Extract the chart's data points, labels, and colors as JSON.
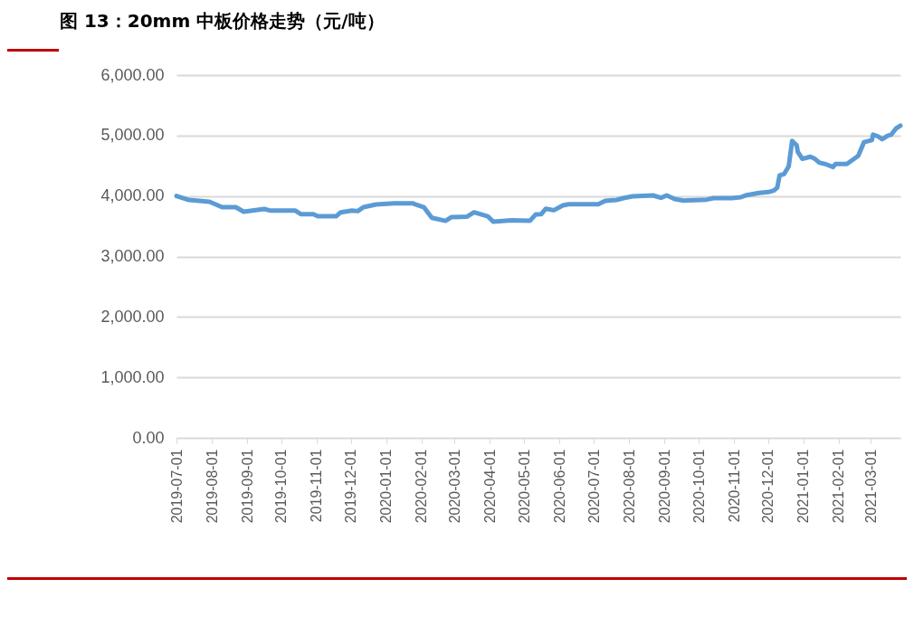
{
  "chart_data": {
    "type": "line",
    "title": "图 13：20mm 中板价格走势（元/吨）",
    "x": [
      "2019-07-01",
      "2019-07-12",
      "2019-07-30",
      "2019-08-10",
      "2019-08-22",
      "2019-08-29",
      "2019-09-16",
      "2019-09-21",
      "2019-10-13",
      "2019-10-18",
      "2019-10-29",
      "2019-11-02",
      "2019-11-18",
      "2019-11-22",
      "2019-12-02",
      "2019-12-07",
      "2019-12-12",
      "2019-12-23",
      "2020-01-08",
      "2020-01-24",
      "2020-01-26",
      "2020-02-03",
      "2020-02-10",
      "2020-02-22",
      "2020-02-27",
      "2020-03-12",
      "2020-03-18",
      "2020-03-30",
      "2020-04-04",
      "2020-04-20",
      "2020-05-06",
      "2020-05-11",
      "2020-05-16",
      "2020-05-20",
      "2020-05-27",
      "2020-06-04",
      "2020-06-09",
      "2020-07-05",
      "2020-07-11",
      "2020-07-21",
      "2020-07-27",
      "2020-08-04",
      "2020-08-22",
      "2020-08-29",
      "2020-09-03",
      "2020-09-10",
      "2020-09-18",
      "2020-10-08",
      "2020-10-14",
      "2020-10-30",
      "2020-11-07",
      "2020-11-12",
      "2020-11-23",
      "2020-12-01",
      "2020-12-06",
      "2020-12-09",
      "2020-12-11",
      "2020-12-15",
      "2020-12-19",
      "2020-12-22",
      "2020-12-26",
      "2020-12-27",
      "2020-12-31",
      "2021-01-07",
      "2021-01-11",
      "2021-01-15",
      "2021-01-20",
      "2021-01-27",
      "2021-01-29",
      "2021-02-08",
      "2021-02-18",
      "2021-02-23",
      "2021-03-02",
      "2021-03-03",
      "2021-03-07",
      "2021-03-11",
      "2021-03-16",
      "2021-03-19",
      "2021-03-23",
      "2021-03-27"
    ],
    "series": [
      {
        "color": "#5b9bd5",
        "values": [
          4000,
          3935,
          3905,
          3815,
          3815,
          3740,
          3785,
          3760,
          3760,
          3700,
          3700,
          3665,
          3665,
          3730,
          3760,
          3750,
          3815,
          3860,
          3880,
          3880,
          3865,
          3815,
          3640,
          3590,
          3650,
          3660,
          3730,
          3665,
          3575,
          3600,
          3590,
          3695,
          3700,
          3790,
          3765,
          3845,
          3865,
          3865,
          3920,
          3935,
          3965,
          3995,
          4010,
          3970,
          4010,
          3950,
          3925,
          3940,
          3965,
          3965,
          3980,
          4015,
          4050,
          4065,
          4090,
          4140,
          4340,
          4365,
          4490,
          4910,
          4840,
          4730,
          4615,
          4650,
          4615,
          4550,
          4530,
          4480,
          4530,
          4530,
          4665,
          4890,
          4925,
          5015,
          4990,
          4940,
          5000,
          5015,
          5115,
          5165
        ]
      }
    ],
    "xlim": [
      "2019-07-01",
      "2021-03-27"
    ],
    "xticks": [
      "2019-07-01",
      "2019-08-01",
      "2019-09-01",
      "2019-10-01",
      "2019-11-01",
      "2019-12-01",
      "2020-01-01",
      "2020-02-01",
      "2020-03-01",
      "2020-04-01",
      "2020-05-01",
      "2020-06-01",
      "2020-07-01",
      "2020-08-01",
      "2020-09-01",
      "2020-10-01",
      "2020-11-01",
      "2020-12-01",
      "2021-01-01",
      "2021-02-01",
      "2021-03-01"
    ],
    "ylim": [
      0,
      6000
    ],
    "yticks": [
      {
        "value": 0,
        "label": "0.00"
      },
      {
        "value": 1000,
        "label": "1,000.00"
      },
      {
        "value": 2000,
        "label": "2,000.00"
      },
      {
        "value": 3000,
        "label": "3,000.00"
      },
      {
        "value": 4000,
        "label": "4,000.00"
      },
      {
        "value": 5000,
        "label": "5,000.00"
      },
      {
        "value": 6000,
        "label": "6,000.00"
      }
    ],
    "grid": "y",
    "marker": "none",
    "line_style": "solid"
  }
}
